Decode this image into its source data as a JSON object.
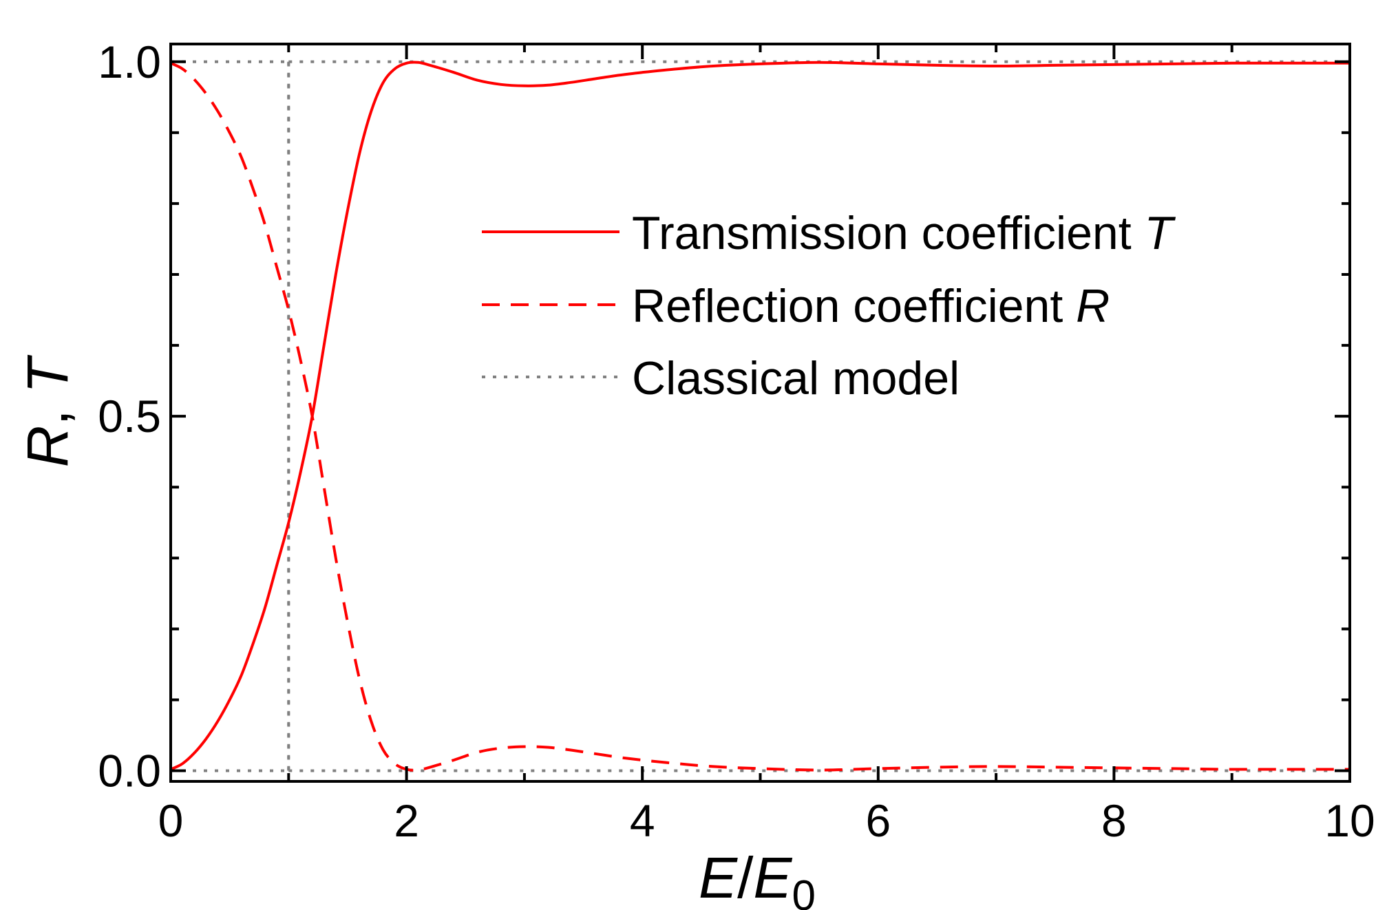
{
  "chart_data": {
    "type": "line",
    "xlabel": {
      "symbol": "E",
      "separator": "/",
      "denominator": "E",
      "subscript": "0"
    },
    "ylabel": {
      "first": "R",
      "separator": ", ",
      "second": "T"
    },
    "xlim": [
      0,
      10
    ],
    "ylim": [
      -0.015,
      1.025
    ],
    "x_ticks": [
      "0",
      "2",
      "4",
      "6",
      "8",
      "10"
    ],
    "x_tick_values": [
      0,
      2,
      4,
      6,
      8,
      10
    ],
    "y_ticks": [
      "0.0",
      "0.5",
      "1.0"
    ],
    "y_tick_values": [
      0.0,
      0.5,
      1.0
    ],
    "grid": false,
    "legend_position": "center-right",
    "series": [
      {
        "name": "Transmission coefficient T",
        "legend_text": "Transmission coefficient ",
        "legend_symbol": "T",
        "style": "solid",
        "color": "#ff0000",
        "x": [
          0,
          0.1,
          0.2,
          0.3,
          0.4,
          0.5,
          0.6,
          0.7,
          0.8,
          0.9,
          1.0,
          1.1,
          1.2,
          1.3,
          1.4,
          1.5,
          1.6,
          1.7,
          1.8,
          1.9,
          2.0,
          2.1,
          2.2,
          2.4,
          2.6,
          2.8,
          3.0,
          3.2,
          3.4,
          3.6,
          3.8,
          4.0,
          4.3,
          4.6,
          5.0,
          5.5,
          6.0,
          6.5,
          7.0,
          7.5,
          8.0,
          8.5,
          9.0,
          9.5,
          10.0
        ],
        "y": [
          0.002,
          0.01,
          0.025,
          0.045,
          0.07,
          0.1,
          0.135,
          0.18,
          0.23,
          0.29,
          0.35,
          0.42,
          0.5,
          0.6,
          0.7,
          0.79,
          0.87,
          0.93,
          0.97,
          0.99,
          0.998,
          0.999,
          0.995,
          0.985,
          0.974,
          0.968,
          0.966,
          0.967,
          0.971,
          0.976,
          0.981,
          0.985,
          0.99,
          0.994,
          0.997,
          0.999,
          0.997,
          0.995,
          0.994,
          0.995,
          0.996,
          0.997,
          0.998,
          0.998,
          0.998
        ]
      },
      {
        "name": "Reflection coefficient R",
        "legend_text": "Reflection coefficient ",
        "legend_symbol": "R",
        "style": "dashed",
        "color": "#ff0000",
        "x": [
          0,
          0.1,
          0.2,
          0.3,
          0.4,
          0.5,
          0.6,
          0.7,
          0.8,
          0.9,
          1.0,
          1.1,
          1.2,
          1.3,
          1.4,
          1.5,
          1.6,
          1.7,
          1.8,
          1.9,
          2.0,
          2.1,
          2.2,
          2.4,
          2.6,
          2.8,
          3.0,
          3.2,
          3.4,
          3.6,
          3.8,
          4.0,
          4.3,
          4.6,
          5.0,
          5.5,
          6.0,
          6.5,
          7.0,
          7.5,
          8.0,
          8.5,
          9.0,
          9.5,
          10.0
        ],
        "y": [
          0.998,
          0.99,
          0.975,
          0.955,
          0.93,
          0.9,
          0.865,
          0.82,
          0.77,
          0.71,
          0.65,
          0.58,
          0.5,
          0.4,
          0.3,
          0.21,
          0.13,
          0.07,
          0.03,
          0.01,
          0.002,
          0.001,
          0.005,
          0.015,
          0.026,
          0.032,
          0.034,
          0.033,
          0.029,
          0.024,
          0.019,
          0.015,
          0.01,
          0.006,
          0.003,
          0.001,
          0.003,
          0.005,
          0.006,
          0.005,
          0.004,
          0.003,
          0.002,
          0.002,
          0.002
        ]
      },
      {
        "name": "Classical model",
        "legend_text": "Classical model",
        "legend_symbol": "",
        "style": "dotted",
        "color": "#808080",
        "segments": [
          {
            "x": [
              0,
              1
            ],
            "y": [
              0,
              0
            ]
          },
          {
            "x": [
              1,
              1
            ],
            "y": [
              0,
              1
            ]
          },
          {
            "x": [
              1,
              10
            ],
            "y": [
              1,
              1
            ]
          },
          {
            "x": [
              0,
              1
            ],
            "y": [
              1,
              1
            ]
          },
          {
            "x": [
              1,
              1
            ],
            "y": [
              1,
              0
            ]
          },
          {
            "x": [
              1,
              10
            ],
            "y": [
              0,
              0
            ]
          }
        ]
      }
    ]
  }
}
